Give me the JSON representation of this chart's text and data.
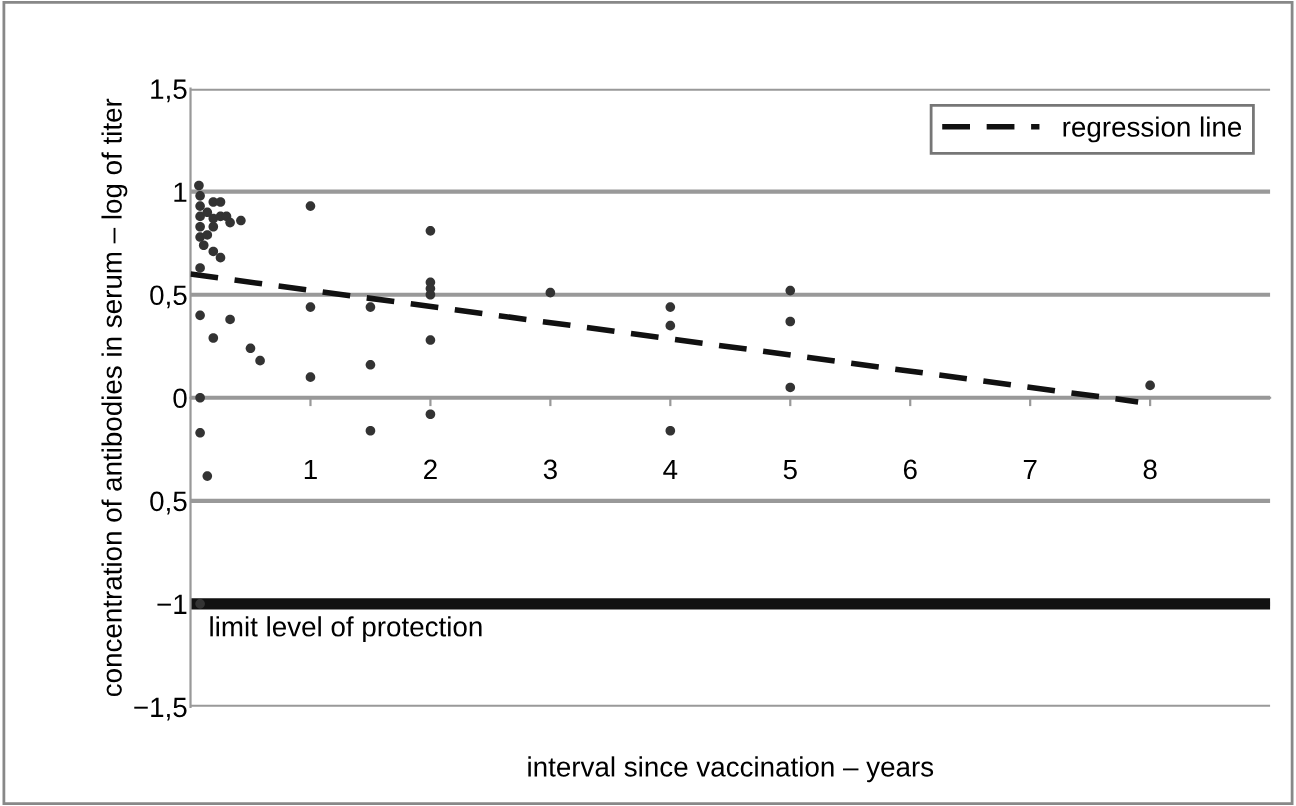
{
  "chart_data": {
    "type": "scatter",
    "xlabel": "interval since vaccination – years",
    "ylabel": "concentration of antibodies in serum – log of titer",
    "xlim": [
      0,
      9
    ],
    "xticks": [
      1,
      2,
      3,
      4,
      5,
      6,
      7,
      8
    ],
    "ylim": [
      -1.5,
      1.5
    ],
    "yticks": [
      {
        "value": 1.5,
        "label": "1,5"
      },
      {
        "value": 1,
        "label": "1"
      },
      {
        "value": 0.5,
        "label": "0,5"
      },
      {
        "value": 0,
        "label": "0"
      },
      {
        "value": -0.5,
        "label": "0,5"
      },
      {
        "value": -1,
        "label": "−1"
      },
      {
        "value": -1.5,
        "label": "−1,5"
      }
    ],
    "grid": "y",
    "legend": "top right",
    "marker": "circle",
    "series": [
      {
        "color": "#333333",
        "x": [
          0.07,
          0.08,
          0.08,
          0.08,
          0.08,
          0.08,
          0.14,
          0.19,
          0.19,
          0.25,
          0.25,
          0.3,
          0.33,
          0.42,
          0.19,
          0.14,
          0.11,
          0.19,
          0.25,
          0.08,
          0.08,
          0.19,
          0.33,
          0.5,
          0.58,
          1.0,
          1.0,
          1.0,
          1.5,
          1.5,
          1.5,
          2.0,
          2.0,
          2.0,
          2.0,
          2.0,
          2.0,
          0.08,
          0.08,
          0.14,
          0.08,
          3.0,
          4.0,
          4.0,
          4.0,
          5.0,
          5.0,
          5.0,
          8.0
        ],
        "values": [
          1.03,
          0.98,
          0.93,
          0.88,
          0.83,
          0.78,
          0.9,
          0.87,
          0.95,
          0.95,
          0.88,
          0.88,
          0.85,
          0.86,
          0.83,
          0.79,
          0.74,
          0.71,
          0.68,
          0.63,
          0.4,
          0.29,
          0.38,
          0.24,
          0.18,
          0.93,
          0.44,
          0.1,
          0.44,
          0.16,
          -0.16,
          0.81,
          0.56,
          0.53,
          0.5,
          0.28,
          -0.08,
          0.0,
          -0.17,
          -0.38,
          -1.0,
          0.51,
          0.44,
          0.35,
          -0.16,
          0.52,
          0.37,
          0.05,
          0.06
        ]
      },
      {
        "type": "line",
        "name": "regression line",
        "color": "#111111",
        "line_style": "dashed",
        "marker": "none",
        "x": [
          0,
          7.9
        ],
        "values": [
          0.6,
          -0.02
        ]
      }
    ],
    "ref_lines": [
      {
        "axis": "y",
        "value": -1,
        "label": "limit level of protection",
        "color": "#111111"
      }
    ]
  }
}
